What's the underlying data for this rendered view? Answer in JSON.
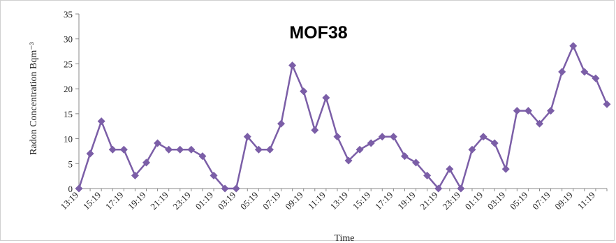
{
  "chart_data": {
    "type": "line",
    "title": "MOF38",
    "xlabel": "Time",
    "ylabel": "Radon Concentration Bqm⁻³",
    "ylim": [
      0,
      35
    ],
    "yticks": [
      0,
      5,
      10,
      15,
      20,
      25,
      30,
      35
    ],
    "grid": false,
    "legend": "none",
    "x_tick_labels": [
      "13:19",
      "15:19",
      "17:19",
      "19:19",
      "21:19",
      "23:19",
      "01:19",
      "03:19",
      "05:19",
      "07:19",
      "09:19",
      "11:19",
      "13:19",
      "15:19",
      "17:19",
      "19:19",
      "21:19",
      "23:19",
      "01:19",
      "03:19",
      "05:19",
      "07:19",
      "09:19",
      "11:19"
    ],
    "x": [
      "13:19",
      "14:19",
      "15:19",
      "16:19",
      "17:19",
      "18:19",
      "19:19",
      "20:19",
      "21:19",
      "22:19",
      "23:19",
      "00:19",
      "01:19",
      "02:19",
      "03:19",
      "04:19",
      "05:19",
      "06:19",
      "07:19",
      "08:19",
      "09:19",
      "10:19",
      "11:19",
      "12:19",
      "13:19",
      "14:19",
      "15:19",
      "16:19",
      "17:19",
      "18:19",
      "19:19",
      "20:19",
      "21:19",
      "22:19",
      "23:19",
      "00:19",
      "01:19",
      "02:19",
      "03:19",
      "04:19",
      "05:19",
      "06:19",
      "07:19",
      "08:19",
      "09:19",
      "10:19",
      "11:19",
      "12:19"
    ],
    "series": [
      {
        "color": "#7b5ea7",
        "values": [
          0,
          7,
          13.5,
          7.8,
          7.8,
          2.6,
          5.2,
          9.1,
          7.8,
          7.8,
          7.8,
          6.5,
          2.6,
          0,
          0,
          10.4,
          7.8,
          7.8,
          13,
          24.7,
          19.5,
          11.7,
          18.2,
          10.4,
          5.6,
          7.8,
          9.1,
          10.4,
          10.4,
          6.5,
          5.2,
          2.6,
          0,
          3.9,
          0,
          7.8,
          10.4,
          9.1,
          3.9,
          15.6,
          15.6,
          13,
          15.6,
          23.4,
          28.6,
          23.4,
          22.1,
          16.9
        ]
      }
    ]
  }
}
